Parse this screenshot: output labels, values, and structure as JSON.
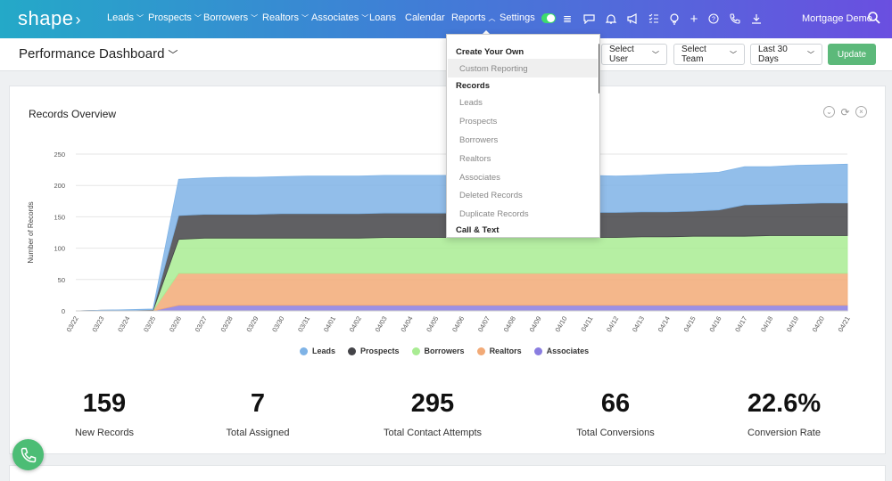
{
  "nav": {
    "logo": "shape",
    "items": [
      {
        "label": "Leads",
        "chevron": true
      },
      {
        "label": "Prospects",
        "chevron": true
      },
      {
        "label": "Borrowers",
        "chevron": true
      },
      {
        "label": "Realtors",
        "chevron": true
      },
      {
        "label": "Associates",
        "chevron": true
      },
      {
        "label": "Loans",
        "chevron": false
      },
      {
        "label": "Calendar",
        "chevron": false
      },
      {
        "label": "Reports",
        "chevron": true
      },
      {
        "label": "Settings",
        "chevron": false
      }
    ],
    "icons": [
      "toggle",
      "list-icon",
      "chat-icon",
      "bell-icon",
      "megaphone-icon",
      "checklist-icon",
      "lightbulb-icon",
      "plus-icon",
      "help-icon",
      "phone-icon",
      "download-icon"
    ],
    "user": "Mortgage Demo"
  },
  "header": {
    "title": "Performance Dashboard",
    "select_user": "Select User",
    "select_team": "Select Team",
    "date_range": "Last 30 Days",
    "update": "Update"
  },
  "reports_menu": {
    "sections": [
      {
        "heading": "Create Your Own",
        "items": [
          "Custom Reporting"
        ]
      },
      {
        "heading": "Records",
        "items": [
          "Leads",
          "Prospects",
          "Borrowers",
          "Realtors",
          "Associates",
          "Deleted Records",
          "Duplicate Records"
        ]
      },
      {
        "heading": "Call & Text",
        "items": []
      }
    ]
  },
  "card": {
    "title": "Records Overview"
  },
  "chart_data": {
    "type": "area",
    "stacked": true,
    "title": "",
    "ylabel": "Number of Records",
    "xlabel": "",
    "ylim": [
      0,
      250
    ],
    "yticks": [
      0,
      50,
      100,
      150,
      200,
      250
    ],
    "categories": [
      "03/22",
      "03/23",
      "03/24",
      "03/25",
      "03/26",
      "03/27",
      "03/28",
      "03/29",
      "03/30",
      "03/31",
      "04/01",
      "04/02",
      "04/03",
      "04/04",
      "04/05",
      "04/06",
      "04/07",
      "04/08",
      "04/09",
      "04/10",
      "04/11",
      "04/12",
      "04/13",
      "04/14",
      "04/15",
      "04/16",
      "04/17",
      "04/18",
      "04/19",
      "04/20",
      "04/21"
    ],
    "series": [
      {
        "name": "Associates",
        "color": "#8a7de0",
        "values": [
          0,
          0,
          0,
          0,
          9,
          9,
          9,
          9,
          9,
          9,
          9,
          9,
          9,
          9,
          9,
          9,
          9,
          9,
          9,
          9,
          9,
          9,
          9,
          9,
          9,
          9,
          9,
          9,
          9,
          9,
          9
        ]
      },
      {
        "name": "Realtors",
        "color": "#f2aa77",
        "values": [
          0,
          0,
          0,
          0,
          51,
          51,
          51,
          51,
          51,
          51,
          51,
          51,
          51,
          51,
          51,
          51,
          51,
          51,
          51,
          51,
          51,
          51,
          51,
          51,
          51,
          51,
          51,
          51,
          51,
          51,
          51
        ]
      },
      {
        "name": "Borrowers",
        "color": "#a9ec93",
        "values": [
          0,
          0,
          0,
          0,
          54,
          56,
          56,
          56,
          56,
          56,
          56,
          56,
          57,
          57,
          57,
          57,
          57,
          57,
          57,
          57,
          57,
          57,
          58,
          58,
          59,
          59,
          59,
          60,
          60,
          60,
          60
        ]
      },
      {
        "name": "Prospects",
        "color": "#444448",
        "values": [
          0,
          1,
          1,
          2,
          38,
          38,
          38,
          38,
          39,
          39,
          39,
          39,
          39,
          39,
          39,
          39,
          39,
          40,
          40,
          40,
          40,
          40,
          40,
          40,
          40,
          42,
          50,
          50,
          51,
          52,
          52
        ]
      },
      {
        "name": "Leads",
        "color": "#7fb3e6",
        "values": [
          0,
          0,
          1,
          1,
          58,
          58,
          59,
          59,
          59,
          60,
          60,
          60,
          60,
          60,
          60,
          60,
          60,
          59,
          60,
          59,
          59,
          58,
          58,
          60,
          60,
          60,
          61,
          60,
          61,
          61,
          62
        ]
      }
    ],
    "legend": [
      "Leads",
      "Prospects",
      "Borrowers",
      "Realtors",
      "Associates"
    ],
    "legend_position": "bottom",
    "grid": true
  },
  "stats": [
    {
      "value": "159",
      "label": "New Records"
    },
    {
      "value": "7",
      "label": "Total Assigned"
    },
    {
      "value": "295",
      "label": "Total Contact Attempts"
    },
    {
      "value": "66",
      "label": "Total Conversions"
    },
    {
      "value": "22.6%",
      "label": "Conversion Rate"
    }
  ]
}
